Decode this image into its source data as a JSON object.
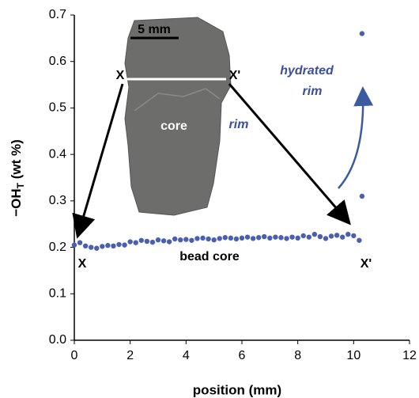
{
  "chart_data": {
    "type": "scatter",
    "xlabel": "position (mm)",
    "ylabel_parts": [
      "−OH",
      "T",
      " (wt %)"
    ],
    "xlim": [
      0,
      12
    ],
    "xticks": [
      0,
      2,
      4,
      6,
      8,
      10,
      12
    ],
    "ylim": [
      0,
      0.7
    ],
    "yticks": [
      {
        "value": 0,
        "label": "0.0"
      },
      {
        "value": 0.1,
        "label": "0.1"
      },
      {
        "value": 0.2,
        "label": "0.2"
      },
      {
        "value": 0.3,
        "label": "0.3"
      },
      {
        "value": 0.4,
        "label": "0.4"
      },
      {
        "value": 0.5,
        "label": "0.5"
      },
      {
        "value": 0.6,
        "label": "0.6"
      },
      {
        "value": 0.7,
        "label": "0.7"
      }
    ],
    "series": [
      {
        "color": "#4a5fb0",
        "x": [
          0,
          0.2,
          0.4,
          0.6,
          0.8,
          1.0,
          1.2,
          1.4,
          1.6,
          1.8,
          2.0,
          2.2,
          2.4,
          2.6,
          2.8,
          3.0,
          3.2,
          3.4,
          3.6,
          3.8,
          4.0,
          4.2,
          4.4,
          4.6,
          4.8,
          5.0,
          5.2,
          5.4,
          5.6,
          5.8,
          6.0,
          6.2,
          6.4,
          6.6,
          6.8,
          7.0,
          7.2,
          7.4,
          7.6,
          7.8,
          8.0,
          8.2,
          8.4,
          8.6,
          8.8,
          9.0,
          9.2,
          9.4,
          9.6,
          9.8,
          10.0,
          10.2,
          10.3,
          10.3
        ],
        "values": [
          0.205,
          0.21,
          0.203,
          0.2,
          0.198,
          0.202,
          0.204,
          0.203,
          0.206,
          0.205,
          0.212,
          0.21,
          0.215,
          0.213,
          0.211,
          0.216,
          0.214,
          0.212,
          0.218,
          0.216,
          0.217,
          0.215,
          0.219,
          0.22,
          0.218,
          0.216,
          0.219,
          0.221,
          0.22,
          0.218,
          0.22,
          0.222,
          0.219,
          0.221,
          0.223,
          0.22,
          0.222,
          0.221,
          0.219,
          0.222,
          0.22,
          0.225,
          0.222,
          0.228,
          0.223,
          0.219,
          0.224,
          0.226,
          0.222,
          0.228,
          0.225,
          0.215,
          0.66,
          0.31
        ]
      }
    ],
    "annotations": {
      "scale": "5 mm",
      "x_top": "X",
      "x_prime_top": "X'",
      "core": "core",
      "rim": "rim",
      "hydrated_1": "hydrated",
      "hydrated_2": "rim",
      "bead_core": "bead core",
      "x_bottom": "X",
      "x_prime_bottom": "X'"
    }
  }
}
